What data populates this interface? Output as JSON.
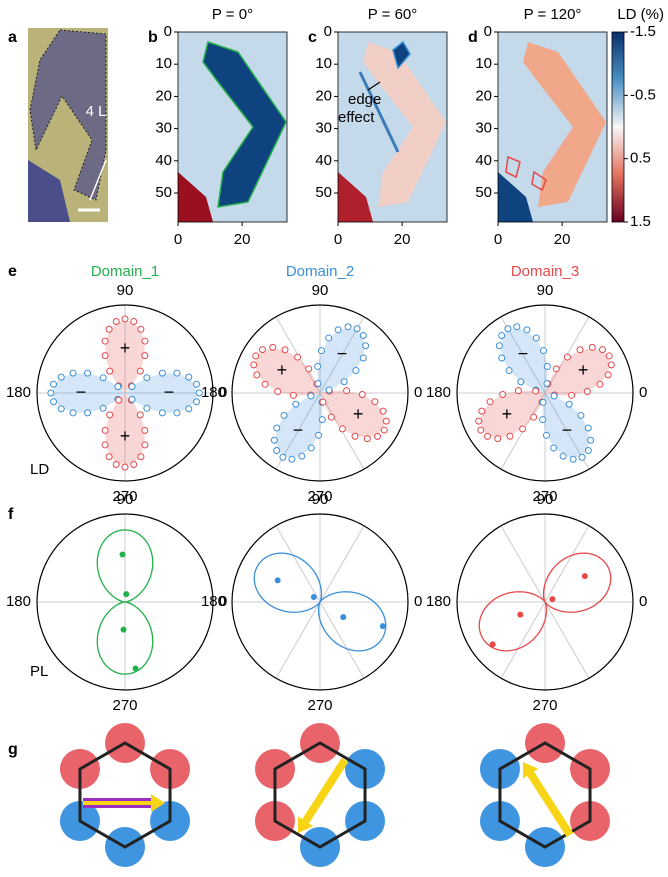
{
  "panel_a": {
    "label": "a",
    "layer_label": "4 L"
  },
  "maps": [
    {
      "label": "b",
      "title": "P = 0°"
    },
    {
      "label": "c",
      "title": "P = 60°",
      "annotation": [
        "edge",
        "effect"
      ]
    },
    {
      "label": "d",
      "title": "P = 120°"
    }
  ],
  "map_axes": {
    "xlim": [
      0,
      34
    ],
    "ylim": [
      0,
      59
    ],
    "xticks": [
      0,
      20
    ],
    "yticks": [
      0,
      10,
      20,
      30,
      40,
      50
    ]
  },
  "colorbar": {
    "label": "LD (%)",
    "lim": [
      -1.5,
      1.5
    ],
    "ticks": [
      -1.5,
      -0.5,
      0.5,
      1.5
    ]
  },
  "panel_e": {
    "label": "e",
    "domains": [
      "Domain_1",
      "Domain_2",
      "Domain_3"
    ],
    "row_label": "LD",
    "signs": [
      "+",
      "−"
    ]
  },
  "panel_f": {
    "label": "f",
    "row_label": "PL"
  },
  "polar_labels": [
    90,
    180,
    0,
    270
  ],
  "panel_g": {
    "label": "g"
  }
}
